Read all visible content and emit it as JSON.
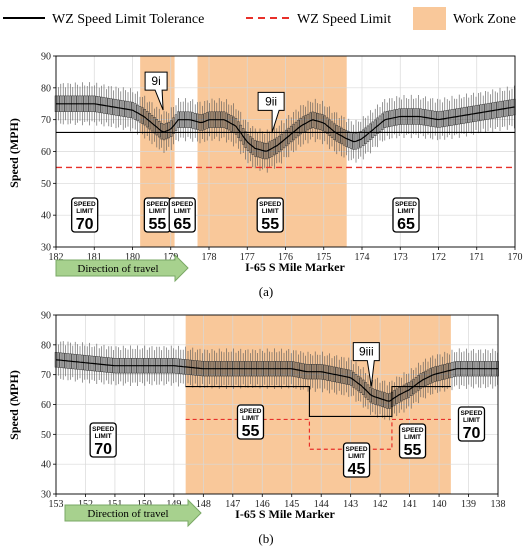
{
  "legend": {
    "tolerance": "WZ Speed Limit Tolerance",
    "limit": "WZ Speed Limit",
    "zone": "Work Zone",
    "colors": {
      "tolerance": "#000000",
      "limit": "#e8302a",
      "zone": "#f9c89a"
    }
  },
  "chart_data": [
    {
      "type": "line",
      "panel_label": "(a)",
      "xlabel": "I-65 S Mile Marker",
      "ylabel": "Speed (MPH)",
      "xlim": [
        182,
        170
      ],
      "ylim": [
        30,
        90
      ],
      "x_ticks": [
        "182",
        "181",
        "180",
        "179",
        "178",
        "177",
        "176",
        "175",
        "174",
        "173",
        "172",
        "171",
        "170"
      ],
      "y_ticks": [
        "30",
        "40",
        "50",
        "60",
        "70",
        "80",
        "90"
      ],
      "grid": true,
      "legend_position": "top",
      "work_zones": [
        [
          179.8,
          178.9
        ],
        [
          178.3,
          174.4
        ]
      ],
      "wz_speed_limit_tolerance": [
        {
          "x": 182,
          "y": 66
        },
        {
          "x": 177.2,
          "y": 66
        },
        {
          "x": 177.2,
          "y": 66
        },
        {
          "x": 170,
          "y": 66
        }
      ],
      "wz_speed_limit": 55,
      "median_speed_profile": {
        "x": [
          182,
          181.5,
          181,
          180.5,
          180,
          179.7,
          179.4,
          179.2,
          179.0,
          178.8,
          178.5,
          178.2,
          178.0,
          177.6,
          177.3,
          177.0,
          176.8,
          176.5,
          176.2,
          176.0,
          175.6,
          175.3,
          175.0,
          174.7,
          174.4,
          174.2,
          174.0,
          173.7,
          173.4,
          173.0,
          172.5,
          172.0,
          171.5,
          171.0,
          170.5,
          170
        ],
        "y": [
          75,
          75,
          75,
          74,
          73,
          71,
          68,
          66,
          67,
          70,
          70,
          69,
          70,
          70,
          68,
          63,
          61,
          60,
          62,
          64,
          68,
          70,
          69,
          66,
          64,
          63,
          64,
          67,
          70,
          71,
          71,
          70,
          71,
          72,
          73,
          74
        ],
        "band_halfwidth_mph": 4.5
      },
      "speed_signs": [
        {
          "x": 181.25,
          "top": "SPEED",
          "bottom": "LIMIT",
          "value": "70"
        },
        {
          "x": 179.35,
          "top": "SPEED",
          "bottom": "LIMIT",
          "value": "55"
        },
        {
          "x": 178.7,
          "top": "SPEED",
          "bottom": "LIMIT",
          "value": "65"
        },
        {
          "x": 176.4,
          "top": "SPEED",
          "bottom": "LIMIT",
          "value": "55"
        },
        {
          "x": 172.85,
          "top": "SPEED",
          "bottom": "LIMIT",
          "value": "65"
        }
      ],
      "callouts": [
        {
          "label": "9i",
          "x": 179.2,
          "y": 73
        },
        {
          "label": "9ii",
          "x": 176.35,
          "y": 66
        }
      ],
      "direction_label": "Direction of travel"
    },
    {
      "type": "line",
      "panel_label": "(b)",
      "xlabel": "I-65 S Mile Marker",
      "ylabel": "Speed (MPH)",
      "xlim": [
        153,
        138
      ],
      "ylim": [
        30,
        90
      ],
      "x_ticks": [
        "153",
        "152",
        "151",
        "150",
        "149",
        "148",
        "147",
        "146",
        "145",
        "144",
        "143",
        "142",
        "141",
        "140",
        "139",
        "138"
      ],
      "y_ticks": [
        "30",
        "40",
        "50",
        "60",
        "70",
        "80",
        "90"
      ],
      "grid": true,
      "legend_position": "top",
      "work_zones": [
        [
          148.6,
          139.6
        ]
      ],
      "wz_speed_limit_tolerance": [
        {
          "x": 148.6,
          "y": 66
        },
        {
          "x": 144.4,
          "y": 66
        },
        {
          "x": 144.4,
          "y": 56
        },
        {
          "x": 141.6,
          "y": 56
        },
        {
          "x": 141.6,
          "y": 66
        },
        {
          "x": 139.6,
          "y": 66
        }
      ],
      "wz_speed_limit": [
        {
          "x": 148.6,
          "y": 55
        },
        {
          "x": 144.4,
          "y": 55
        },
        {
          "x": 144.4,
          "y": 45
        },
        {
          "x": 141.6,
          "y": 45
        },
        {
          "x": 141.6,
          "y": 55
        },
        {
          "x": 139.6,
          "y": 55
        }
      ],
      "median_speed_profile": {
        "x": [
          153,
          152,
          151,
          150,
          149,
          148,
          147,
          146,
          145,
          144.5,
          144,
          143.5,
          143,
          142.6,
          142.3,
          142.0,
          141.7,
          141.4,
          141.0,
          140.6,
          140.2,
          139.8,
          139.4,
          139.0,
          138.5,
          138
        ],
        "y": [
          75,
          74,
          73,
          73,
          73,
          72,
          72,
          72,
          72,
          71,
          71,
          70,
          69,
          66,
          63,
          62,
          61,
          63,
          65,
          68,
          70,
          71,
          72,
          72,
          72,
          72
        ],
        "band_halfwidth_mph": 4.5
      },
      "speed_signs": [
        {
          "x": 151.4,
          "top": "SPEED",
          "bottom": "LIMIT",
          "value": "70"
        },
        {
          "x": 146.4,
          "top": "SPEED",
          "bottom": "LIMIT",
          "value": "55"
        },
        {
          "x": 142.8,
          "top": "SPEED",
          "bottom": "LIMIT",
          "value": "45"
        },
        {
          "x": 140.9,
          "top": "SPEED",
          "bottom": "LIMIT",
          "value": "55"
        },
        {
          "x": 138.9,
          "top": "SPEED",
          "bottom": "LIMIT",
          "value": "70"
        }
      ],
      "callouts": [
        {
          "label": "9iii",
          "x": 142.3,
          "y": 66
        }
      ],
      "direction_label": "Direction of travel"
    }
  ]
}
